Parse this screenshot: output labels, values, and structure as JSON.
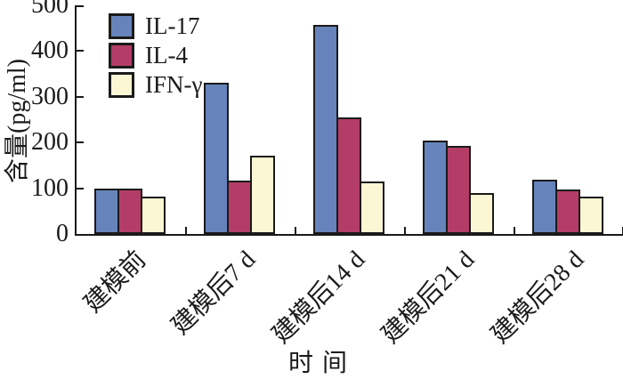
{
  "chart_data": {
    "type": "bar",
    "title": "",
    "categories": [
      "建模前",
      "建模后7 d",
      "建模后14 d",
      "建模后21 d",
      "建模后28 d"
    ],
    "series": [
      {
        "name": "IL-17",
        "color": "#6684BB",
        "values": [
          100,
          330,
          457,
          205,
          118
        ]
      },
      {
        "name": "IL-4",
        "color": "#B43D68",
        "values": [
          100,
          117,
          255,
          193,
          97
        ]
      },
      {
        "name": "IFN-γ",
        "color": "#FBF6D4",
        "values": [
          82,
          172,
          115,
          90,
          82
        ]
      }
    ],
    "xlabel": "时间",
    "ylabel": "含量(pg/ml)",
    "ylim": [
      0,
      500
    ],
    "yticks": [
      0,
      100,
      200,
      300,
      400,
      500
    ],
    "grid": false,
    "legend_position": "top-left-inside",
    "colors": {
      "bar_border": "#1a1a1a",
      "axis": "#1a1a1a",
      "text": "#1a1a1a",
      "background": "#ffffff"
    }
  }
}
